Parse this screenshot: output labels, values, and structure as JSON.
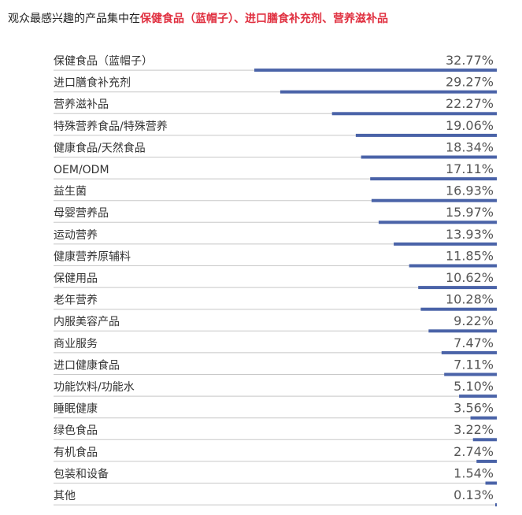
{
  "header": {
    "title_prefix": "观众最感兴趣的产品集中在",
    "title_highlight": "保健食品（蓝帽子）、进口膳食补充剂、营养滋补品"
  },
  "chart_data": {
    "type": "bar",
    "orientation": "horizontal",
    "categories": [
      "保健食品（蓝帽子）",
      "进口膳食补充剂",
      "营养滋补品",
      "特殊营养食品/特殊营养",
      "健康食品/天然食品",
      "OEM/ODM",
      "益生菌",
      "母婴营养品",
      "运动营养",
      "健康营养原辅料",
      "保健用品",
      "老年营养",
      "内服美容产品",
      "商业服务",
      "进口健康食品",
      "功能饮料/功能水",
      "睡眠健康",
      "绿色食品",
      "有机食品",
      "包装和设备",
      "其他"
    ],
    "values": [
      32.77,
      29.27,
      22.27,
      19.06,
      18.34,
      17.11,
      16.93,
      15.97,
      13.93,
      11.85,
      10.62,
      10.28,
      9.22,
      7.47,
      7.11,
      5.1,
      3.56,
      3.22,
      2.74,
      1.54,
      0.13
    ],
    "value_labels": [
      "32.77%",
      "29.27%",
      "22.27%",
      "19.06%",
      "18.34%",
      "17.11%",
      "16.93%",
      "15.97%",
      "13.93%",
      "11.85%",
      "10.62%",
      "10.28%",
      "9.22%",
      "7.47%",
      "7.11%",
      "5.10%",
      "3.56%",
      "3.22%",
      "2.74%",
      "1.54%",
      "0.13%"
    ],
    "xlim": [
      0,
      32.77
    ],
    "bar_color": "#4a63a8",
    "separator_color": "#c8c8c8",
    "title": "",
    "xlabel": "",
    "ylabel": ""
  }
}
